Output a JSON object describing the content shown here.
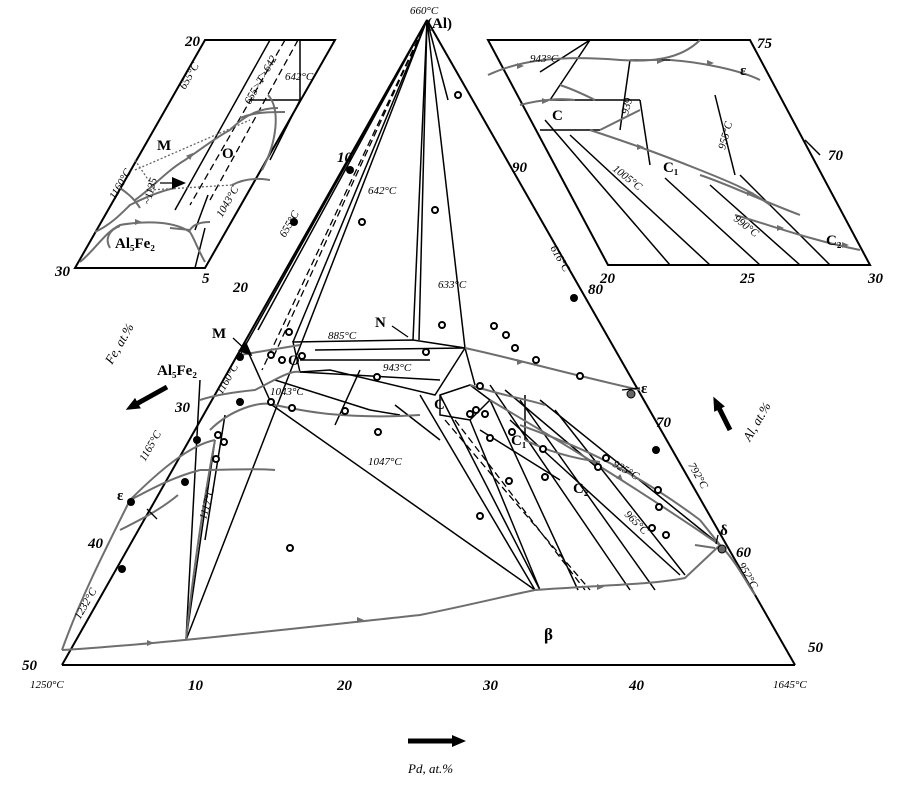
{
  "vertex_temperatures": {
    "al": "660°C",
    "al_label": "(Al)",
    "al5fe2_corner": "1250°C",
    "pd_corner": "1645°C"
  },
  "axis_labels": {
    "fe": "Fe, at.%",
    "al": "Al, at.%",
    "pd": "Pd, at.%"
  },
  "ticks": {
    "fe": [
      "10",
      "20",
      "30",
      "40",
      "50"
    ],
    "al": [
      "90",
      "80",
      "70",
      "60",
      "50"
    ],
    "pd": [
      "10",
      "20",
      "30",
      "40"
    ]
  },
  "main_phases": {
    "m": "M",
    "o": "O",
    "al5fe2": "Al₅Fe₂",
    "n": "N",
    "c": "C",
    "c1": "C₁",
    "c2": "C₂",
    "epsilon_right": "ε",
    "epsilon_left": "ε",
    "delta": "δ",
    "beta": "β"
  },
  "main_temperatures": {
    "t655": "655°C",
    "t642": "642°C",
    "t616": "616°C",
    "t633": "633°C",
    "t885": "885°C",
    "t943": "943°C",
    "t1160": "1160°C",
    "t1043": "1043°C",
    "t1047": "1047°C",
    "t1165": "1165°C",
    "t1117": "1117°C",
    "t1232": "1232°C",
    "t792": "792°C",
    "t925": "925°C",
    "t965": "965°C",
    "t952": "952°C"
  },
  "inset_left": {
    "ticks": [
      "20",
      "30",
      "5"
    ],
    "temps": [
      "655°C",
      "655>T>642",
      "642°C",
      "1160°C",
      "~1135",
      "1043°C"
    ],
    "phases": [
      "M",
      "O",
      "Al₅Fe₂"
    ]
  },
  "inset_right": {
    "ticks": [
      "75",
      "70",
      "20",
      "25",
      "30"
    ],
    "temps": [
      "943°C",
      "939",
      "1005°C",
      "955°C",
      "990°C"
    ],
    "phases": [
      "ε",
      "C",
      "C₁",
      "C₂"
    ]
  },
  "colors": {
    "lines": "#000000",
    "monovariant_curves": "#6e6e6e",
    "background": "#ffffff"
  }
}
